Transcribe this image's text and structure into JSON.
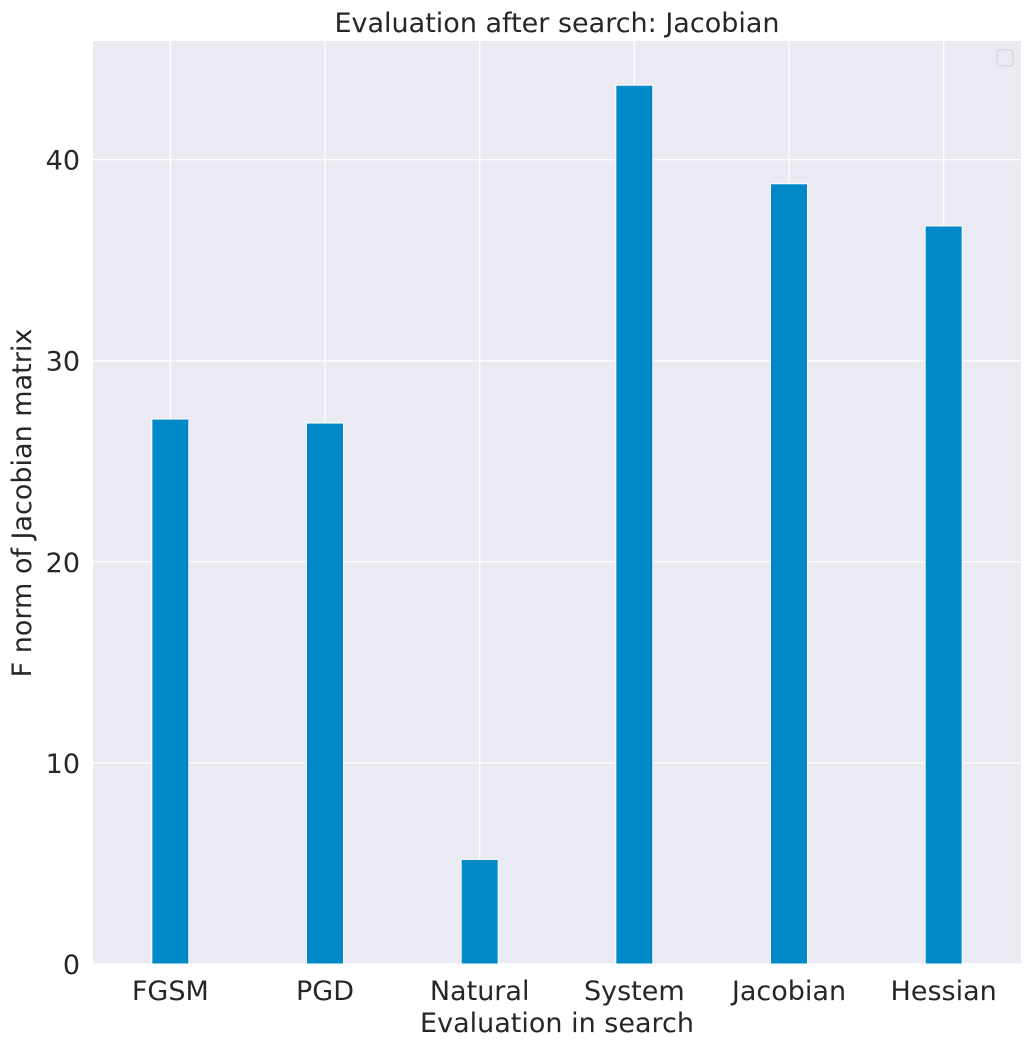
{
  "chart_data": {
    "type": "bar",
    "title": "Evaluation after search: Jacobian",
    "xlabel": "Evaluation in search",
    "ylabel": "F norm of Jacobian matrix",
    "categories": [
      "FGSM",
      "PGD",
      "Natural",
      "System",
      "Jacobian",
      "Hessian"
    ],
    "values": [
      27.1,
      26.9,
      5.2,
      43.7,
      38.8,
      36.7
    ],
    "ylim": [
      0,
      45.9
    ],
    "yticks": [
      0,
      10,
      20,
      30,
      40
    ],
    "grid": true,
    "legend": {
      "placement": "top-right",
      "entries": []
    },
    "colors": {
      "bar": "#0088c8",
      "background": "#eaeaf2",
      "grid": "#ffffff"
    }
  }
}
